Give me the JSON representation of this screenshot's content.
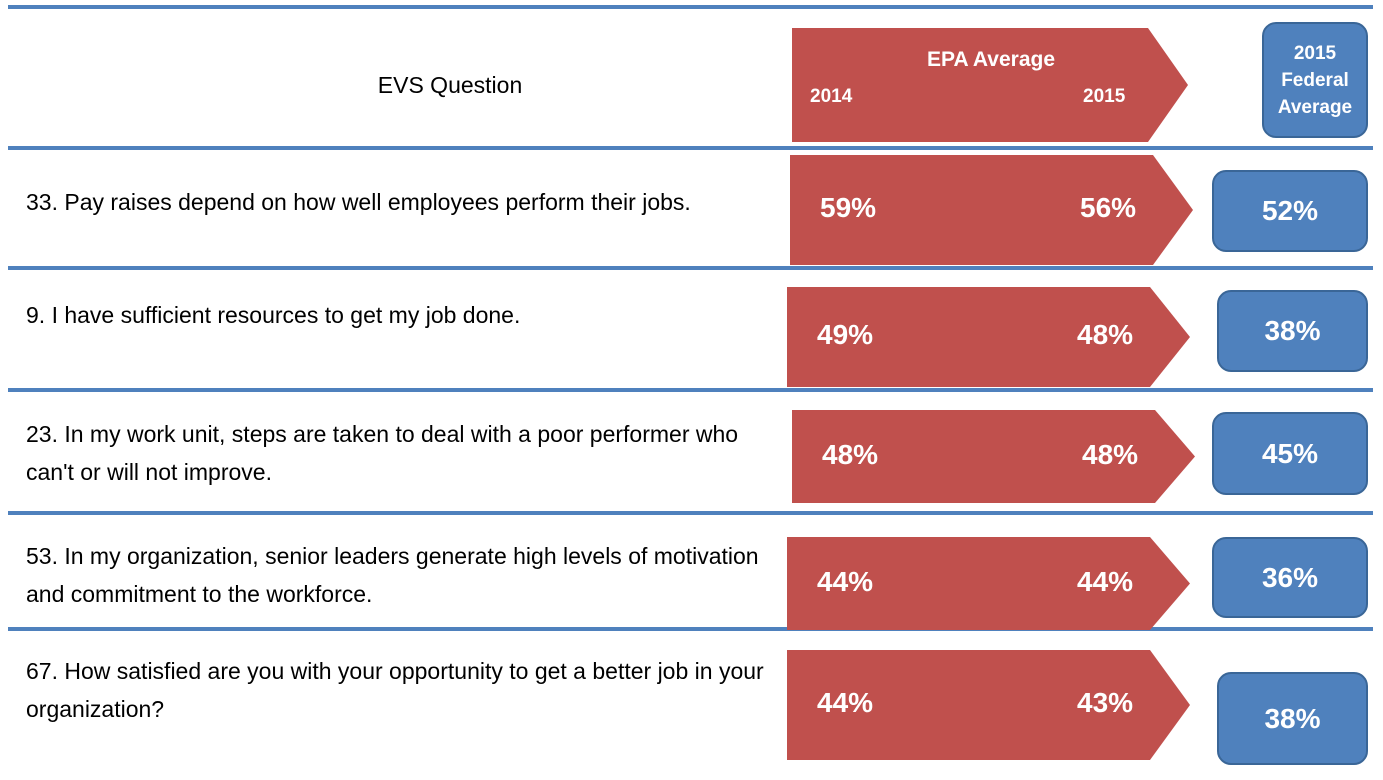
{
  "header": {
    "question": "EVS Question",
    "epa": "EPA Average",
    "year_a": "2014",
    "year_b": "2015",
    "federal": "2015 Federal Average"
  },
  "rows": [
    {
      "question": "33. Pay raises depend on how well employees perform their jobs.",
      "epa_2014": "59%",
      "epa_2015": "56%",
      "federal": "52%"
    },
    {
      "question": "9. I have sufficient resources to get my job done.",
      "epa_2014": "49%",
      "epa_2015": "48%",
      "federal": "38%"
    },
    {
      "question": "23. In my work unit, steps are taken to deal with a poor performer who can't or will not improve.",
      "epa_2014": "48%",
      "epa_2015": "48%",
      "federal": "45%"
    },
    {
      "question": "53. In my organization, senior leaders generate high levels of motivation and commitment to the workforce.",
      "epa_2014": "44%",
      "epa_2015": "44%",
      "federal": "36%"
    },
    {
      "question": "67. How satisfied are you with your opportunity to get a better job in your organization?",
      "epa_2014": "44%",
      "epa_2015": "43%",
      "federal": "38%"
    }
  ]
}
